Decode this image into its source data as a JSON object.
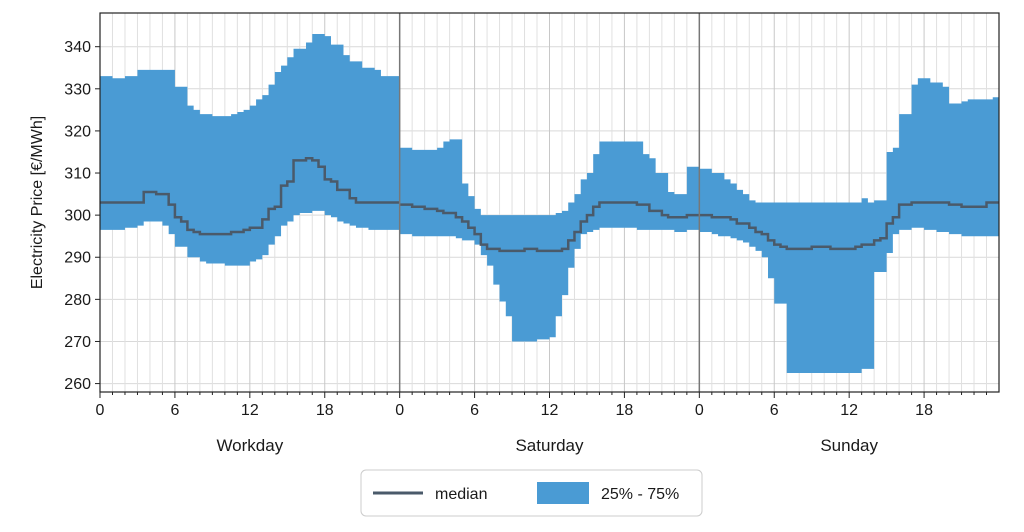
{
  "chart_data": {
    "type": "area",
    "ylabel": "Electricity Price [€/MWh]",
    "ylim": [
      258,
      348
    ],
    "y_ticks": [
      260,
      270,
      280,
      290,
      300,
      310,
      320,
      330,
      340
    ],
    "x_range_hours": [
      0,
      24
    ],
    "x_ticks": [
      0,
      6,
      12,
      18
    ],
    "grid": true,
    "legend": {
      "placement": "bottom-center",
      "entries": [
        {
          "label": "median",
          "kind": "line",
          "color": "#4a5a6a"
        },
        {
          "label": "25% - 75%",
          "kind": "patch",
          "color": "#4a9bd4"
        }
      ]
    },
    "colors": {
      "band": "#4a9bd4",
      "median": "#4a5a6a",
      "divider": "#777777"
    },
    "panels": [
      {
        "label": "Workday",
        "hours": [
          0,
          0.5,
          1,
          1.5,
          2,
          2.5,
          3,
          3.5,
          4,
          4.5,
          5,
          5.5,
          6,
          6.5,
          7,
          7.5,
          8,
          8.5,
          9,
          9.5,
          10,
          10.5,
          11,
          11.5,
          12,
          12.5,
          13,
          13.5,
          14,
          14.5,
          15,
          15.5,
          16,
          16.5,
          17,
          17.5,
          18,
          18.5,
          19,
          19.5,
          20,
          20.5,
          21,
          21.5,
          22,
          22.5,
          23,
          23.5
        ],
        "q25": [
          296.5,
          296.5,
          296.5,
          296.5,
          297,
          297,
          297.5,
          298.5,
          298.5,
          298.5,
          297.5,
          295.5,
          292.5,
          292.5,
          290,
          290,
          289,
          288.5,
          288.5,
          288.5,
          288,
          288,
          288,
          288,
          289,
          289.5,
          290.5,
          293,
          295,
          297.5,
          298.5,
          300,
          300.5,
          300.5,
          301,
          301,
          300,
          299.5,
          298.5,
          298,
          297.5,
          297,
          297,
          296.5,
          296.5,
          296.5,
          296.5,
          296.5
        ],
        "median": [
          303,
          303,
          303,
          303,
          303,
          303,
          303,
          305.5,
          305.5,
          305,
          305,
          302.5,
          299.5,
          298.5,
          296.5,
          296,
          295.5,
          295.5,
          295.5,
          295.5,
          295.5,
          296,
          296,
          296.5,
          297,
          297,
          299,
          301.5,
          302,
          307,
          308,
          313,
          313,
          313.5,
          313,
          311.5,
          308.5,
          308,
          306,
          306,
          304,
          303,
          303,
          303,
          303,
          303,
          303,
          303
        ],
        "q75": [
          333,
          333,
          332.5,
          332.5,
          333,
          333,
          334.5,
          334.5,
          334.5,
          334.5,
          334.5,
          334.5,
          330.5,
          330.5,
          326,
          325,
          324,
          324,
          323.5,
          323.5,
          323.5,
          324,
          324.5,
          325,
          326,
          327.5,
          328.5,
          331,
          334,
          335.5,
          337.5,
          339.5,
          339.5,
          341,
          343,
          343,
          342.5,
          340.5,
          340.5,
          338,
          336.5,
          336.5,
          335,
          335,
          334.5,
          333,
          333,
          333
        ]
      },
      {
        "label": "Saturday",
        "hours": [
          0,
          0.5,
          1,
          1.5,
          2,
          2.5,
          3,
          3.5,
          4,
          4.5,
          5,
          5.5,
          6,
          6.5,
          7,
          7.5,
          8,
          8.5,
          9,
          9.5,
          10,
          10.5,
          11,
          11.5,
          12,
          12.5,
          13,
          13.5,
          14,
          14.5,
          15,
          15.5,
          16,
          16.5,
          17,
          17.5,
          18,
          18.5,
          19,
          19.5,
          20,
          20.5,
          21,
          21.5,
          22,
          22.5,
          23,
          23.5
        ],
        "q25": [
          295.5,
          295.5,
          295,
          295,
          295,
          295,
          295,
          295,
          295,
          294.5,
          294,
          294,
          293,
          290.5,
          288,
          283.5,
          279.5,
          276,
          270,
          270,
          270,
          270,
          270.5,
          270.5,
          271,
          276,
          281,
          287.5,
          292,
          295.5,
          296,
          296.5,
          297,
          297,
          297,
          297,
          297,
          297,
          296.5,
          296.5,
          296.5,
          296.5,
          296.5,
          296.5,
          296,
          296,
          296.5,
          296.5
        ],
        "median": [
          302.5,
          302.5,
          302,
          302,
          301.5,
          301.5,
          301,
          300.5,
          300.5,
          299.5,
          298.5,
          297,
          295.5,
          293,
          292,
          292,
          291.5,
          291.5,
          291.5,
          291.5,
          292,
          292,
          291.5,
          291.5,
          291.5,
          291.5,
          292,
          294,
          296,
          298.5,
          300,
          302,
          303,
          303,
          303,
          303,
          303,
          303,
          302.5,
          302.5,
          301,
          301,
          300,
          299.5,
          299.5,
          299.5,
          300,
          300
        ],
        "q75": [
          316,
          316,
          315.5,
          315.5,
          315.5,
          315.5,
          316,
          317.5,
          318,
          318,
          307.5,
          304.5,
          301.5,
          300,
          300,
          300,
          300,
          300,
          300,
          300,
          300,
          300,
          300,
          300,
          300,
          300.5,
          301,
          303,
          305,
          308.5,
          310,
          314.5,
          317.5,
          317.5,
          317.5,
          317.5,
          317.5,
          317.5,
          317.5,
          314.5,
          313.5,
          310,
          310,
          305.5,
          305,
          305,
          311.5,
          311.5
        ]
      },
      {
        "label": "Sunday",
        "hours": [
          0,
          0.5,
          1,
          1.5,
          2,
          2.5,
          3,
          3.5,
          4,
          4.5,
          5,
          5.5,
          6,
          6.5,
          7,
          7.5,
          8,
          8.5,
          9,
          9.5,
          10,
          10.5,
          11,
          11.5,
          12,
          12.5,
          13,
          13.5,
          14,
          14.5,
          15,
          15.5,
          16,
          16.5,
          17,
          17.5,
          18,
          18.5,
          19,
          19.5,
          20,
          20.5,
          21,
          21.5,
          22,
          22.5,
          23,
          23.5
        ],
        "q25": [
          296,
          296,
          295.5,
          295,
          295,
          294.5,
          294,
          293.5,
          292.5,
          291.5,
          290,
          285,
          279,
          279,
          262.5,
          262.5,
          262.5,
          262.5,
          262.5,
          262.5,
          262.5,
          262.5,
          262.5,
          262.5,
          262.5,
          262.5,
          263.5,
          263.5,
          286.5,
          286.5,
          291,
          295.5,
          296.5,
          296.5,
          297,
          297,
          296.5,
          296.5,
          296,
          296,
          295.5,
          295.5,
          295,
          295,
          295,
          295,
          295,
          295
        ],
        "median": [
          300,
          300,
          299.5,
          299.5,
          299.5,
          299,
          298,
          298,
          297,
          296,
          295.5,
          294,
          293,
          292.5,
          292,
          292,
          292,
          292,
          292.5,
          292.5,
          292.5,
          292,
          292,
          292,
          292,
          292.5,
          293,
          293,
          294,
          294.5,
          298,
          299.5,
          302.5,
          302.5,
          303,
          303,
          303,
          303,
          303,
          303,
          302.5,
          302.5,
          302,
          302,
          302,
          302,
          303,
          303
        ],
        "q75": [
          311,
          311,
          310,
          310,
          308.5,
          307.5,
          306,
          305,
          303.5,
          303,
          303,
          303,
          303,
          303,
          303,
          303,
          303,
          303,
          303,
          303,
          303,
          303,
          303,
          303,
          303,
          303,
          304,
          303,
          303.5,
          303.5,
          315,
          316,
          324,
          324,
          331,
          332.5,
          332.5,
          331.5,
          331.5,
          330.5,
          326.5,
          326.5,
          327,
          327.5,
          327.5,
          327.5,
          327.5,
          328
        ]
      }
    ]
  }
}
